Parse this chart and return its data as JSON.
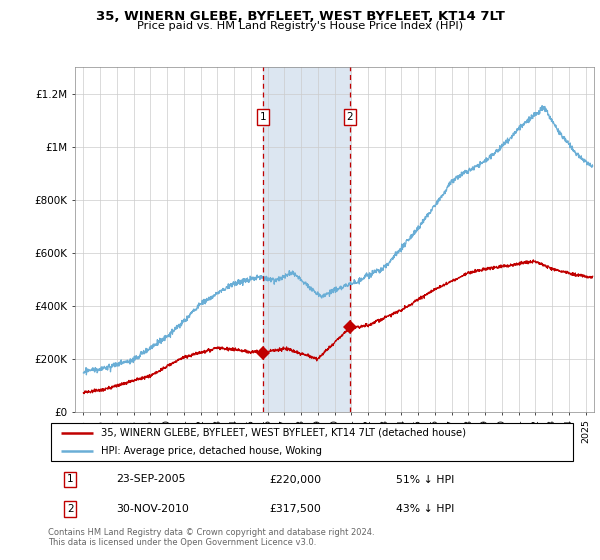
{
  "title": "35, WINERN GLEBE, BYFLEET, WEST BYFLEET, KT14 7LT",
  "subtitle": "Price paid vs. HM Land Registry's House Price Index (HPI)",
  "legend_entry1": "35, WINERN GLEBE, BYFLEET, WEST BYFLEET, KT14 7LT (detached house)",
  "legend_entry2": "HPI: Average price, detached house, Woking",
  "footnote": "Contains HM Land Registry data © Crown copyright and database right 2024.\nThis data is licensed under the Open Government Licence v3.0.",
  "transaction1_date": "23-SEP-2005",
  "transaction1_price": "£220,000",
  "transaction1_hpi": "51% ↓ HPI",
  "transaction2_date": "30-NOV-2010",
  "transaction2_price": "£317,500",
  "transaction2_hpi": "43% ↓ HPI",
  "transaction1_x": 2005.73,
  "transaction1_y": 220000,
  "transaction2_x": 2010.92,
  "transaction2_y": 317500,
  "hpi_color": "#6aaed6",
  "price_color": "#c00000",
  "shaded_color": "#dce6f1",
  "marker_box_color": "#c00000",
  "grid_color": "#cccccc",
  "background_color": "#ffffff",
  "ylim_max": 1300000,
  "xlim_min": 1994.5,
  "xlim_max": 2025.5,
  "yticks": [
    0,
    200000,
    400000,
    600000,
    800000,
    1000000,
    1200000
  ],
  "ylabels": [
    "£0",
    "£200K",
    "£400K",
    "£600K",
    "£800K",
    "£1M",
    "£1.2M"
  ]
}
